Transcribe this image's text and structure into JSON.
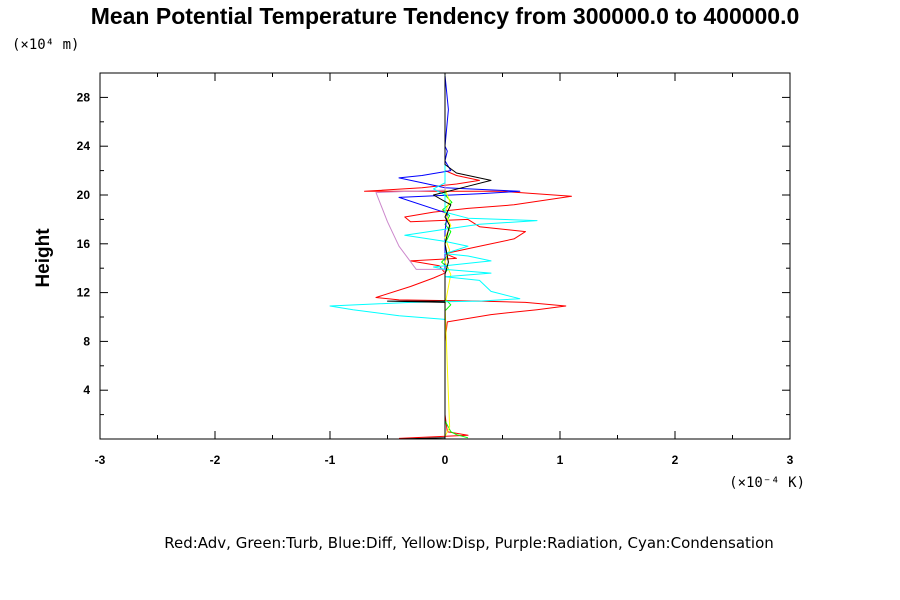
{
  "chart_data": {
    "type": "line",
    "title": "Mean Potential Temperature Tendency from 300000.0 to 400000.0",
    "ylabel": "Height",
    "y_unit": "(×10⁴ m)",
    "x_unit": "(×10⁻⁴ K)",
    "legend_text": "Red:Adv, Green:Turb, Blue:Diff, Yellow:Disp, Purple:Radiation, Cyan:Condensation",
    "xlim": [
      -3,
      3
    ],
    "ylim": [
      0,
      30
    ],
    "x_ticks": [
      -3,
      -2,
      -1,
      0,
      1,
      2,
      3
    ],
    "x_tick_labels": [
      "-3",
      "-2",
      "-1",
      "0",
      "1",
      "2",
      "3"
    ],
    "y_ticks": [
      4,
      8,
      12,
      16,
      20,
      24,
      28
    ],
    "y_tick_labels": [
      "4",
      "8",
      "12",
      "16",
      "20",
      "24",
      "28"
    ],
    "grid": false,
    "legend_position": "bottom",
    "series": [
      {
        "color": "#ff0000",
        "points": [
          [
            -0.4,
            0.05
          ],
          [
            0.2,
            0.3
          ],
          [
            0.02,
            0.6
          ],
          [
            0,
            2
          ],
          [
            0,
            8
          ],
          [
            0.02,
            9.6
          ],
          [
            0.4,
            10.2
          ],
          [
            0.8,
            10.6
          ],
          [
            1.05,
            10.9
          ],
          [
            0.7,
            11.2
          ],
          [
            0.3,
            11.3
          ],
          [
            -0.4,
            11.4
          ],
          [
            -0.6,
            11.6
          ],
          [
            -0.3,
            12.5
          ],
          [
            -0.1,
            13.2
          ],
          [
            0,
            13.6
          ],
          [
            -0.05,
            14.2
          ],
          [
            -0.3,
            14.6
          ],
          [
            0.1,
            14.8
          ],
          [
            0,
            15.2
          ],
          [
            0.3,
            15.8
          ],
          [
            0.6,
            16.4
          ],
          [
            0.7,
            17
          ],
          [
            0.3,
            17.4
          ],
          [
            0.2,
            18
          ],
          [
            -0.3,
            17.8
          ],
          [
            -0.35,
            18.2
          ],
          [
            -0.1,
            18.6
          ],
          [
            0.2,
            18.9
          ],
          [
            0.6,
            19.2
          ],
          [
            1.1,
            19.9
          ],
          [
            0.5,
            20.3
          ],
          [
            -0.7,
            20.3
          ],
          [
            -0.2,
            20.6
          ],
          [
            0.1,
            20.9
          ],
          [
            0.3,
            21.2
          ],
          [
            0.1,
            21.6
          ],
          [
            0,
            22
          ],
          [
            0,
            29.8
          ]
        ]
      },
      {
        "color": "#00ff00",
        "points": [
          [
            0.2,
            0.1
          ],
          [
            0.1,
            0.35
          ],
          [
            0.05,
            0.6
          ],
          [
            0,
            1.5
          ],
          [
            0,
            10.5
          ],
          [
            0.05,
            11
          ],
          [
            0,
            11.5
          ],
          [
            0,
            13.6
          ],
          [
            0.03,
            14
          ],
          [
            -0.03,
            14.5
          ],
          [
            0.02,
            15
          ],
          [
            0,
            16
          ],
          [
            0.05,
            17
          ],
          [
            0,
            17.6
          ],
          [
            0.04,
            18.3
          ],
          [
            -0.02,
            18.8
          ],
          [
            0.06,
            19.4
          ],
          [
            0,
            20
          ],
          [
            0,
            29.8
          ]
        ]
      },
      {
        "color": "#0000ff",
        "points": [
          [
            0,
            0.1
          ],
          [
            0,
            17
          ],
          [
            0.02,
            18.5
          ],
          [
            -0.4,
            19.8
          ],
          [
            0.3,
            20.1
          ],
          [
            0.65,
            20.3
          ],
          [
            0,
            20.6
          ],
          [
            -0.2,
            21
          ],
          [
            -0.4,
            21.4
          ],
          [
            -0.2,
            21.6
          ],
          [
            0.05,
            22
          ],
          [
            0,
            22.8
          ],
          [
            0.02,
            23.6
          ],
          [
            0,
            24
          ],
          [
            0.03,
            27
          ],
          [
            0,
            29.8
          ]
        ]
      },
      {
        "color": "#ffff00",
        "points": [
          [
            0,
            0.2
          ],
          [
            0.04,
            1
          ],
          [
            0,
            11
          ],
          [
            0.05,
            13.5
          ],
          [
            0,
            14.5
          ],
          [
            0.04,
            15.5
          ],
          [
            0,
            16.5
          ],
          [
            0.05,
            17.5
          ],
          [
            0,
            18.5
          ],
          [
            0.04,
            19.5
          ],
          [
            0,
            20.5
          ],
          [
            0,
            24
          ]
        ]
      },
      {
        "color": "#cc88cc",
        "points": [
          [
            0,
            0.1
          ],
          [
            0,
            13.9
          ],
          [
            -0.25,
            13.9
          ],
          [
            -0.4,
            15.8
          ],
          [
            -0.5,
            17.8
          ],
          [
            -0.6,
            20.2
          ],
          [
            -0.3,
            20.3
          ],
          [
            0,
            20.4
          ],
          [
            0,
            22
          ]
        ]
      },
      {
        "color": "#00ffff",
        "points": [
          [
            0,
            0.1
          ],
          [
            0,
            9.8
          ],
          [
            -0.4,
            10.1
          ],
          [
            -0.8,
            10.6
          ],
          [
            -1,
            10.9
          ],
          [
            -0.3,
            11.2
          ],
          [
            0.3,
            11.3
          ],
          [
            0.65,
            11.5
          ],
          [
            0.4,
            12.1
          ],
          [
            0.3,
            13
          ],
          [
            0,
            13.3
          ],
          [
            0.4,
            13.6
          ],
          [
            0,
            13.9
          ],
          [
            -0.1,
            14.1
          ],
          [
            0.4,
            14.6
          ],
          [
            0.2,
            15
          ],
          [
            0,
            15.2
          ],
          [
            0.2,
            15.8
          ],
          [
            0,
            16.2
          ],
          [
            -0.35,
            16.7
          ],
          [
            0,
            17.2
          ],
          [
            0.3,
            17.6
          ],
          [
            0.8,
            17.9
          ],
          [
            0.2,
            18.1
          ],
          [
            0,
            18.6
          ],
          [
            0,
            20
          ],
          [
            -0.1,
            20.5
          ],
          [
            0,
            21
          ],
          [
            0,
            29.8
          ]
        ]
      },
      {
        "color": "#000000",
        "points": [
          [
            -0.4,
            0
          ],
          [
            0,
            0.1
          ],
          [
            0,
            11.2
          ],
          [
            -0.5,
            11.3
          ],
          [
            0,
            11.3
          ],
          [
            0,
            13.5
          ],
          [
            0.03,
            14.5
          ],
          [
            0,
            16
          ],
          [
            0.04,
            17.5
          ],
          [
            0,
            18.2
          ],
          [
            0.05,
            19.2
          ],
          [
            -0.1,
            20
          ],
          [
            0.15,
            20.6
          ],
          [
            0.4,
            21.2
          ],
          [
            0.1,
            21.8
          ],
          [
            0,
            22.5
          ],
          [
            0,
            29.8
          ]
        ]
      }
    ]
  }
}
